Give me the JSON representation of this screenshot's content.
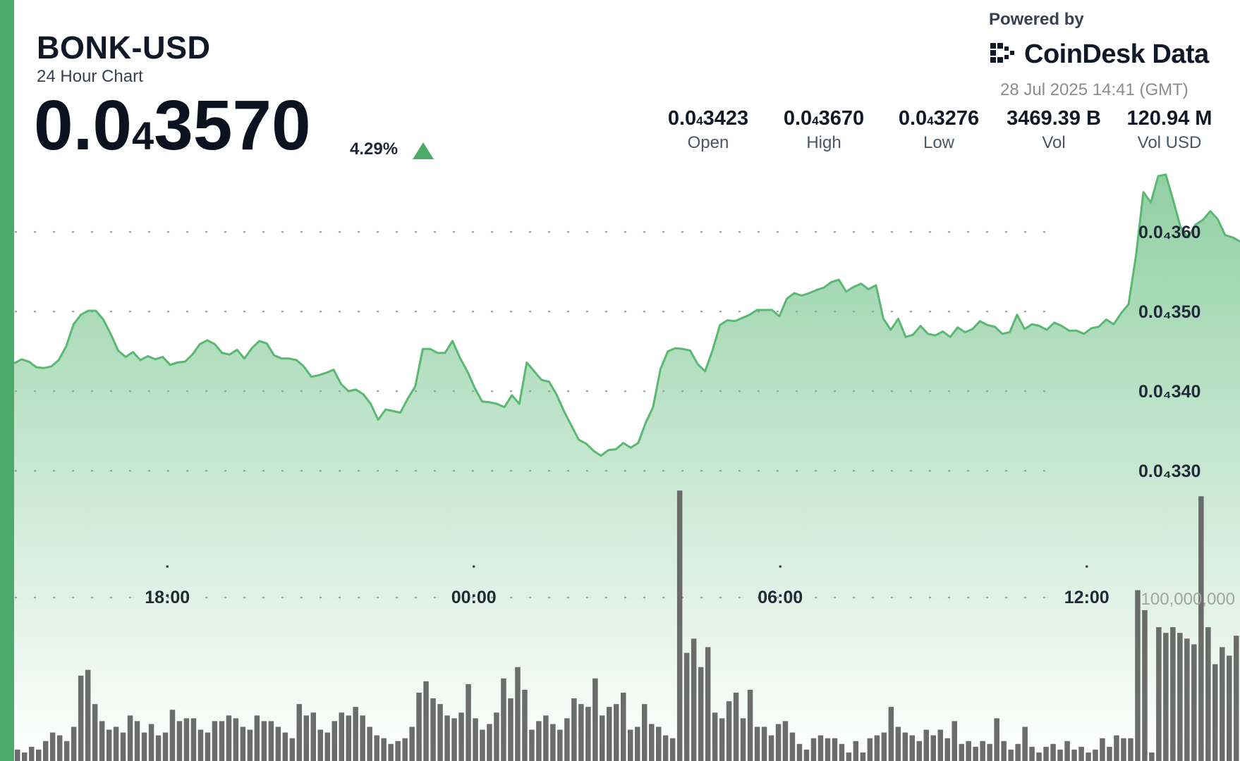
{
  "header": {
    "pair": "BONK-USD",
    "subtitle": "24 Hour Chart",
    "price_prefix": "0.0",
    "price_zero_count": "4",
    "price_digits": "3570",
    "change_pct": "4.29%",
    "change_direction": "up"
  },
  "branding": {
    "powered_by": "Powered by",
    "brand_name": "CoinDesk Data",
    "logo_icon": "coindesk-logo-icon"
  },
  "timestamp": "28 Jul 2025 14:41 (GMT)",
  "stats": [
    {
      "prefix": "0.0",
      "sub": "4",
      "digits": "3423",
      "label": "Open"
    },
    {
      "prefix": "0.0",
      "sub": "4",
      "digits": "3670",
      "label": "High"
    },
    {
      "prefix": "0.0",
      "sub": "4",
      "digits": "3276",
      "label": "Low"
    },
    {
      "prefix": "3469.39 B",
      "sub": "",
      "digits": "",
      "label": "Vol"
    },
    {
      "prefix": "120.94 M",
      "sub": "",
      "digits": "",
      "label": "Vol USD"
    }
  ],
  "colors": {
    "accent": "#4daa6a",
    "line": "#5ab872",
    "area_fill": "#6cc085",
    "volume_bar": "#5f5f5f",
    "up": "#4daa6a"
  },
  "chart_data": {
    "type": "line",
    "title": "BONK-USD",
    "x_ticks": [
      "18:00",
      "00:00",
      "06:00",
      "12:00"
    ],
    "x_tick_hours": [
      3,
      9,
      15,
      21
    ],
    "y_ticks": [
      {
        "value": 3.6e-05,
        "label": "0.0₄360"
      },
      {
        "value": 3.5e-05,
        "label": "0.0₄350"
      },
      {
        "value": 3.4e-05,
        "label": "0.0₄340"
      },
      {
        "value": 3.3e-05,
        "label": "0.0₄330"
      }
    ],
    "ylim": [
      3.201e-05,
      3.67e-05
    ],
    "xlim": [
      0,
      24
    ],
    "volume_tick_label": "100,000,000",
    "grid": "dotted-horizontal",
    "series": [
      {
        "type": "line",
        "values": [
          3435,
          3440,
          3437,
          3430,
          3429,
          3431,
          3439,
          3456,
          3484,
          3496,
          3501,
          3501,
          3490,
          3472,
          3451,
          3443,
          3449,
          3439,
          3444,
          3440,
          3443,
          3433,
          3436,
          3437,
          3446,
          3459,
          3464,
          3459,
          3448,
          3446,
          3452,
          3441,
          3454,
          3463,
          3460,
          3445,
          3441,
          3441,
          3439,
          3431,
          3418,
          3420,
          3423,
          3427,
          3409,
          3400,
          3402,
          3396,
          3384,
          3364,
          3377,
          3375,
          3373,
          3391,
          3406,
          3453,
          3453,
          3448,
          3448,
          3463,
          3442,
          3425,
          3404,
          3387,
          3386,
          3384,
          3380,
          3395,
          3384,
          3436,
          3425,
          3414,
          3412,
          3396,
          3375,
          3357,
          3339,
          3334,
          3325,
          3319,
          3326,
          3327,
          3335,
          3329,
          3335,
          3360,
          3380,
          3428,
          3450,
          3454,
          3453,
          3451,
          3434,
          3425,
          3451,
          3483,
          3489,
          3488,
          3492,
          3496,
          3502,
          3502,
          3502,
          3494,
          3516,
          3523,
          3520,
          3523,
          3527,
          3530,
          3537,
          3540,
          3525,
          3531,
          3535,
          3528,
          3533,
          3491,
          3477,
          3491,
          3468,
          3471,
          3482,
          3472,
          3470,
          3475,
          3468,
          3480,
          3474,
          3478,
          3488,
          3483,
          3481,
          3472,
          3474,
          3496,
          3478,
          3484,
          3482,
          3477,
          3486,
          3482,
          3476,
          3476,
          3472,
          3479,
          3481,
          3490,
          3484,
          3498,
          3509,
          3570,
          3650,
          3637,
          3670,
          3672,
          3640,
          3606,
          3593,
          3609,
          3615,
          3626,
          3616,
          3596,
          3593,
          3588
        ]
      }
    ],
    "price_unit_scale": "values × 1e-8 USD",
    "volume": [
      4,
      3,
      5,
      4,
      7,
      10,
      9,
      7,
      12,
      30,
      32,
      20,
      14,
      11,
      12,
      10,
      16,
      14,
      10,
      13,
      9,
      10,
      18,
      14,
      15,
      15,
      11,
      10,
      14,
      14,
      16,
      15,
      12,
      11,
      16,
      14,
      14,
      12,
      10,
      8,
      20,
      16,
      17,
      11,
      10,
      14,
      17,
      16,
      19,
      16,
      12,
      9,
      8,
      6,
      7,
      8,
      12,
      24,
      28,
      22,
      20,
      16,
      15,
      17,
      27,
      15,
      11,
      13,
      17,
      29,
      22,
      33,
      25,
      11,
      14,
      16,
      13,
      11,
      15,
      22,
      20,
      19,
      29,
      16,
      19,
      20,
      24,
      11,
      12,
      20,
      13,
      12,
      9,
      8,
      95,
      38,
      43,
      33,
      40,
      17,
      15,
      21,
      24,
      15,
      25,
      12,
      12,
      9,
      13,
      14,
      10,
      6,
      4,
      8,
      9,
      8,
      8,
      6,
      3,
      7,
      3,
      8,
      9,
      10,
      19,
      12,
      10,
      9,
      7,
      11,
      9,
      11,
      8,
      14,
      6,
      7,
      5,
      7,
      6,
      15,
      7,
      4,
      6,
      12,
      5,
      3,
      5,
      6,
      4,
      7,
      4,
      5,
      3,
      4,
      8,
      5,
      9,
      8,
      8,
      60,
      53,
      3,
      47,
      45,
      47,
      45,
      43,
      41,
      93,
      47,
      34,
      40,
      37,
      44
    ]
  }
}
